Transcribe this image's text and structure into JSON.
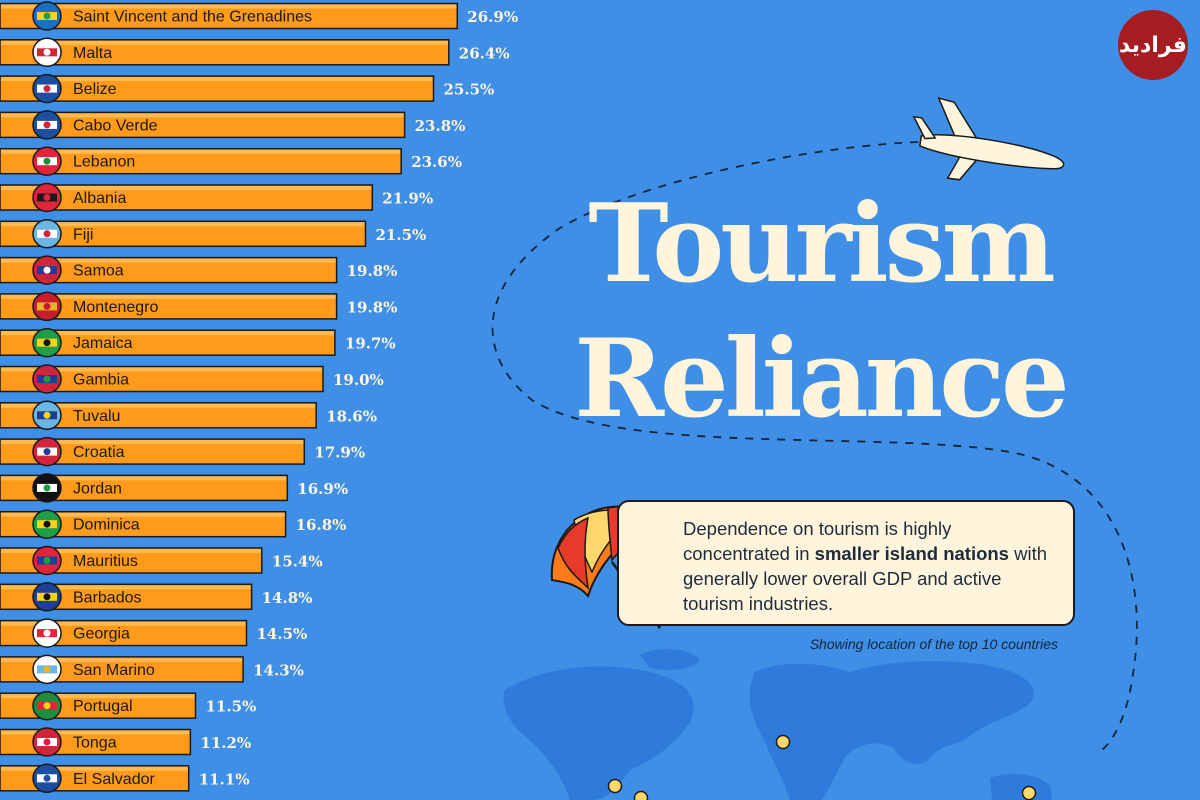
{
  "title": {
    "line1": "Tourism",
    "line2": "Reliance"
  },
  "callout": {
    "text_before": "Dependence on tourism is highly concentrated in ",
    "highlight": "smaller island nations",
    "text_after": " with generally lower overall GDP and active tourism industries."
  },
  "map_note": "Showing location of the top 10 countries",
  "logo_text": "فرادید",
  "colors": {
    "background": "#3e8fe5",
    "bar_fill": "#ff9a1a",
    "bar_highlight": "#ffba52",
    "title": "#fff4dc",
    "map": "#2f7bdb",
    "marker": "#ffd76a",
    "logo": "#a51d22"
  },
  "chart_data": {
    "type": "bar",
    "orientation": "horizontal",
    "value_suffix": "%",
    "categories": [
      "Saint Vincent and the Grenadines",
      "Malta",
      "Belize",
      "Cabo Verde",
      "Lebanon",
      "Albania",
      "Fiji",
      "Samoa",
      "Montenegro",
      "Jamaica",
      "Gambia",
      "Tuvalu",
      "Croatia",
      "Jordan",
      "Dominica",
      "Mauritius",
      "Barbados",
      "Georgia",
      "San Marino",
      "Portugal",
      "Tonga",
      "El Salvador"
    ],
    "values": [
      26.9,
      26.4,
      25.5,
      23.8,
      23.6,
      21.9,
      21.5,
      19.8,
      19.8,
      19.7,
      19.0,
      18.6,
      17.9,
      16.9,
      16.8,
      15.4,
      14.8,
      14.5,
      14.3,
      11.5,
      11.2,
      11.1
    ],
    "value_labels": [
      "26.9%",
      "26.4%",
      "25.5%",
      "23.8%",
      "23.6%",
      "21.9%",
      "21.5%",
      "19.8%",
      "19.8%",
      "19.7%",
      "19.0%",
      "18.6%",
      "17.9%",
      "16.9%",
      "16.8%",
      "15.4%",
      "14.8%",
      "14.5%",
      "14.3%",
      "11.5%",
      "11.2%",
      "11.1%"
    ],
    "flag_colors": [
      [
        "#1b6ec2",
        "#f6d21c",
        "#1e9e46"
      ],
      [
        "#ffffff",
        "#d4243a",
        "#ffffff"
      ],
      [
        "#1c4fa2",
        "#ffffff",
        "#d3243a"
      ],
      [
        "#1c4fa2",
        "#ffffff",
        "#d3243a"
      ],
      [
        "#e0243a",
        "#ffffff",
        "#1e8d3e"
      ],
      [
        "#e0243a",
        "#1a1a1a",
        "#e0243a"
      ],
      [
        "#6cb6e6",
        "#ffffff",
        "#d3243a"
      ],
      [
        "#d3243a",
        "#1c3f94",
        "#ffffff"
      ],
      [
        "#c81e2c",
        "#e8b42a",
        "#c81e2c"
      ],
      [
        "#1e9e46",
        "#f6d21c",
        "#111111"
      ],
      [
        "#d3243a",
        "#1c3f94",
        "#1e9e46"
      ],
      [
        "#6cb6e6",
        "#1c3f94",
        "#f6d21c"
      ],
      [
        "#d3243a",
        "#ffffff",
        "#1c3f94"
      ],
      [
        "#111111",
        "#ffffff",
        "#1e9e46"
      ],
      [
        "#1e9e46",
        "#f6d21c",
        "#111111"
      ],
      [
        "#e0243a",
        "#1c3f94",
        "#1e9e46"
      ],
      [
        "#1c3f94",
        "#f6d21c",
        "#111111"
      ],
      [
        "#ffffff",
        "#e0243a",
        "#ffffff"
      ],
      [
        "#ffffff",
        "#6cb6e6",
        "#e8b42a"
      ],
      [
        "#1e8d3e",
        "#e0243a",
        "#f6d21c"
      ],
      [
        "#d3243a",
        "#ffffff",
        "#d3243a"
      ],
      [
        "#1c4fa2",
        "#ffffff",
        "#1c4fa2"
      ]
    ]
  }
}
